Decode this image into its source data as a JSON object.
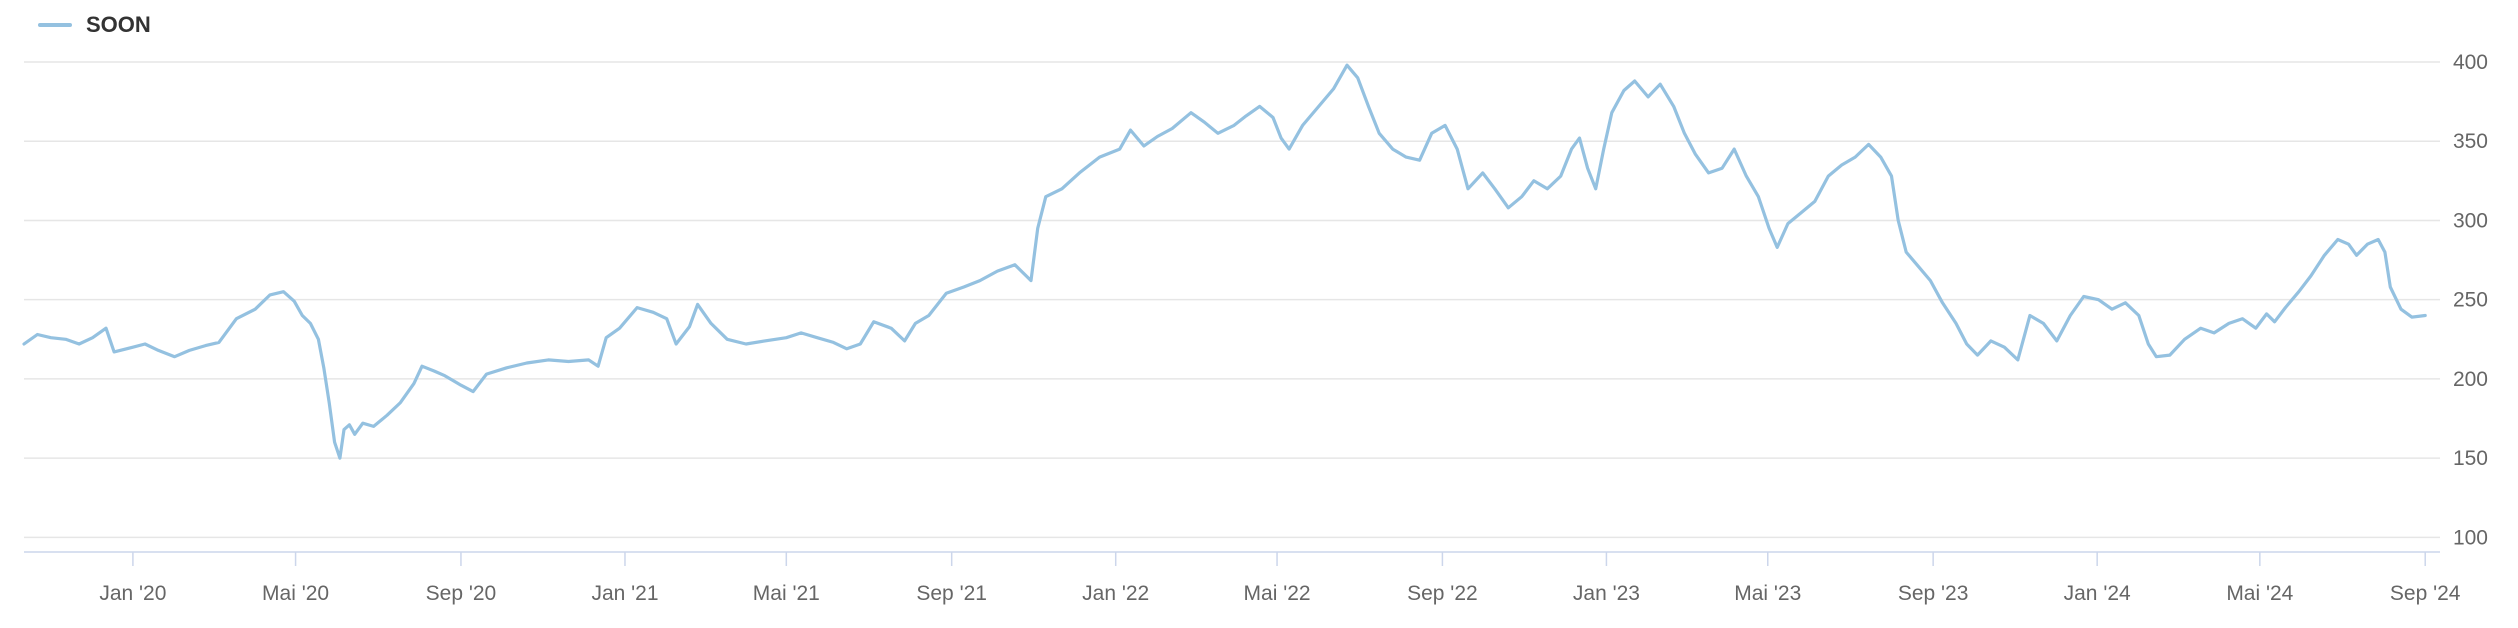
{
  "chart_data": {
    "type": "line",
    "legend": {
      "label": "SOON",
      "placement": "top-left"
    },
    "colors": {
      "series": "#94c1e0",
      "grid": "#e6e6e6",
      "axis": "#ccd6eb",
      "tick_text": "#666666",
      "legend_text": "#333333"
    },
    "x_tick_labels": [
      "Jan '20",
      "Mai '20",
      "Sep '20",
      "Jan '21",
      "Mai '21",
      "Sep '21",
      "Jan '22",
      "Mai '22",
      "Sep '22",
      "Jan '23",
      "Mai '23",
      "Sep '23",
      "Jan '24",
      "Mai '24",
      "Sep '24"
    ],
    "x_tick_dates": [
      "2020-01-01",
      "2020-05-01",
      "2020-09-01",
      "2021-01-01",
      "2021-05-01",
      "2021-09-01",
      "2022-01-01",
      "2022-05-01",
      "2022-09-01",
      "2023-01-01",
      "2023-05-01",
      "2023-09-01",
      "2024-01-01",
      "2024-05-01",
      "2024-09-01"
    ],
    "xlim": [
      "2019-10-12",
      "2024-09-12"
    ],
    "y_ticks": [
      100,
      150,
      200,
      250,
      300,
      350,
      400
    ],
    "y_tick_labels": [
      "100",
      "150",
      "200",
      "250",
      "300",
      "350",
      "400"
    ],
    "ylim": [
      92,
      400
    ],
    "grid": true,
    "series": [
      {
        "name": "SOON",
        "points": [
          [
            "2019-10-12",
            222
          ],
          [
            "2019-10-22",
            228
          ],
          [
            "2019-11-01",
            226
          ],
          [
            "2019-11-12",
            225
          ],
          [
            "2019-11-22",
            222
          ],
          [
            "2019-12-02",
            226
          ],
          [
            "2019-12-12",
            232
          ],
          [
            "2019-12-18",
            217
          ],
          [
            "2020-01-01",
            220
          ],
          [
            "2020-01-10",
            222
          ],
          [
            "2020-01-20",
            218
          ],
          [
            "2020-02-01",
            214
          ],
          [
            "2020-02-12",
            218
          ],
          [
            "2020-02-24",
            221
          ],
          [
            "2020-03-05",
            223
          ],
          [
            "2020-03-18",
            238
          ],
          [
            "2020-04-01",
            244
          ],
          [
            "2020-04-12",
            253
          ],
          [
            "2020-04-22",
            255
          ],
          [
            "2020-04-30",
            249
          ],
          [
            "2020-05-06",
            240
          ],
          [
            "2020-05-12",
            235
          ],
          [
            "2020-05-18",
            225
          ],
          [
            "2020-05-22",
            207
          ],
          [
            "2020-05-26",
            185
          ],
          [
            "2020-05-30",
            160
          ],
          [
            "2020-06-03",
            150
          ],
          [
            "2020-06-06",
            168
          ],
          [
            "2020-06-10",
            171
          ],
          [
            "2020-06-14",
            165
          ],
          [
            "2020-06-20",
            172
          ],
          [
            "2020-06-28",
            170
          ],
          [
            "2020-07-08",
            177
          ],
          [
            "2020-07-18",
            185
          ],
          [
            "2020-07-28",
            197
          ],
          [
            "2020-08-03",
            208
          ],
          [
            "2020-08-12",
            205
          ],
          [
            "2020-08-20",
            202
          ],
          [
            "2020-09-01",
            196
          ],
          [
            "2020-09-10",
            192
          ],
          [
            "2020-09-20",
            203
          ],
          [
            "2020-10-05",
            207
          ],
          [
            "2020-10-20",
            210
          ],
          [
            "2020-11-05",
            212
          ],
          [
            "2020-11-20",
            211
          ],
          [
            "2020-12-05",
            212
          ],
          [
            "2020-12-12",
            208
          ],
          [
            "2020-12-18",
            226
          ],
          [
            "2020-12-28",
            232
          ],
          [
            "2021-01-10",
            245
          ],
          [
            "2021-01-22",
            242
          ],
          [
            "2021-02-01",
            238
          ],
          [
            "2021-02-08",
            222
          ],
          [
            "2021-02-18",
            233
          ],
          [
            "2021-02-24",
            247
          ],
          [
            "2021-03-06",
            235
          ],
          [
            "2021-03-18",
            225
          ],
          [
            "2021-04-01",
            222
          ],
          [
            "2021-04-15",
            224
          ],
          [
            "2021-05-01",
            226
          ],
          [
            "2021-05-12",
            229
          ],
          [
            "2021-05-24",
            226
          ],
          [
            "2021-06-05",
            223
          ],
          [
            "2021-06-15",
            219
          ],
          [
            "2021-06-25",
            222
          ],
          [
            "2021-07-05",
            236
          ],
          [
            "2021-07-18",
            232
          ],
          [
            "2021-07-28",
            224
          ],
          [
            "2021-08-05",
            235
          ],
          [
            "2021-08-15",
            240
          ],
          [
            "2021-08-28",
            254
          ],
          [
            "2021-09-10",
            258
          ],
          [
            "2021-09-22",
            262
          ],
          [
            "2021-10-05",
            268
          ],
          [
            "2021-10-18",
            272
          ],
          [
            "2021-10-30",
            262
          ],
          [
            "2021-11-04",
            295
          ],
          [
            "2021-11-10",
            315
          ],
          [
            "2021-11-22",
            320
          ],
          [
            "2021-12-05",
            330
          ],
          [
            "2021-12-20",
            340
          ],
          [
            "2022-01-04",
            345
          ],
          [
            "2022-01-12",
            357
          ],
          [
            "2022-01-22",
            347
          ],
          [
            "2022-02-01",
            353
          ],
          [
            "2022-02-12",
            358
          ],
          [
            "2022-02-26",
            368
          ],
          [
            "2022-03-08",
            362
          ],
          [
            "2022-03-18",
            355
          ],
          [
            "2022-03-30",
            360
          ],
          [
            "2022-04-08",
            366
          ],
          [
            "2022-04-18",
            372
          ],
          [
            "2022-04-28",
            365
          ],
          [
            "2022-05-04",
            352
          ],
          [
            "2022-05-10",
            345
          ],
          [
            "2022-05-20",
            360
          ],
          [
            "2022-06-01",
            372
          ],
          [
            "2022-06-12",
            383
          ],
          [
            "2022-06-22",
            398
          ],
          [
            "2022-06-30",
            390
          ],
          [
            "2022-07-08",
            372
          ],
          [
            "2022-07-16",
            355
          ],
          [
            "2022-07-26",
            345
          ],
          [
            "2022-08-05",
            340
          ],
          [
            "2022-08-15",
            338
          ],
          [
            "2022-08-24",
            355
          ],
          [
            "2022-09-03",
            360
          ],
          [
            "2022-09-12",
            345
          ],
          [
            "2022-09-20",
            320
          ],
          [
            "2022-10-01",
            330
          ],
          [
            "2022-10-10",
            320
          ],
          [
            "2022-10-20",
            308
          ],
          [
            "2022-10-30",
            315
          ],
          [
            "2022-11-08",
            325
          ],
          [
            "2022-11-18",
            320
          ],
          [
            "2022-11-28",
            328
          ],
          [
            "2022-12-06",
            345
          ],
          [
            "2022-12-12",
            352
          ],
          [
            "2022-12-18",
            333
          ],
          [
            "2022-12-24",
            320
          ],
          [
            "2022-12-30",
            345
          ],
          [
            "2023-01-05",
            368
          ],
          [
            "2023-01-14",
            382
          ],
          [
            "2023-01-22",
            388
          ],
          [
            "2023-02-01",
            378
          ],
          [
            "2023-02-10",
            386
          ],
          [
            "2023-02-20",
            372
          ],
          [
            "2023-02-28",
            355
          ],
          [
            "2023-03-08",
            342
          ],
          [
            "2023-03-18",
            330
          ],
          [
            "2023-03-28",
            333
          ],
          [
            "2023-04-06",
            345
          ],
          [
            "2023-04-15",
            328
          ],
          [
            "2023-04-24",
            315
          ],
          [
            "2023-05-02",
            295
          ],
          [
            "2023-05-08",
            283
          ],
          [
            "2023-05-16",
            298
          ],
          [
            "2023-05-26",
            305
          ],
          [
            "2023-06-05",
            312
          ],
          [
            "2023-06-15",
            328
          ],
          [
            "2023-06-25",
            335
          ],
          [
            "2023-07-05",
            340
          ],
          [
            "2023-07-15",
            348
          ],
          [
            "2023-07-24",
            340
          ],
          [
            "2023-08-01",
            328
          ],
          [
            "2023-08-06",
            300
          ],
          [
            "2023-08-12",
            280
          ],
          [
            "2023-08-20",
            272
          ],
          [
            "2023-08-30",
            262
          ],
          [
            "2023-09-08",
            248
          ],
          [
            "2023-09-18",
            235
          ],
          [
            "2023-09-26",
            222
          ],
          [
            "2023-10-04",
            215
          ],
          [
            "2023-10-14",
            224
          ],
          [
            "2023-10-24",
            220
          ],
          [
            "2023-11-03",
            212
          ],
          [
            "2023-11-12",
            240
          ],
          [
            "2023-11-22",
            235
          ],
          [
            "2023-12-02",
            224
          ],
          [
            "2023-12-12",
            240
          ],
          [
            "2023-12-22",
            252
          ],
          [
            "2024-01-02",
            250
          ],
          [
            "2024-01-12",
            244
          ],
          [
            "2024-01-22",
            248
          ],
          [
            "2024-02-01",
            240
          ],
          [
            "2024-02-08",
            222
          ],
          [
            "2024-02-14",
            214
          ],
          [
            "2024-02-24",
            215
          ],
          [
            "2024-03-06",
            225
          ],
          [
            "2024-03-18",
            232
          ],
          [
            "2024-03-28",
            229
          ],
          [
            "2024-04-08",
            235
          ],
          [
            "2024-04-18",
            238
          ],
          [
            "2024-04-28",
            232
          ],
          [
            "2024-05-06",
            241
          ],
          [
            "2024-05-12",
            236
          ],
          [
            "2024-05-20",
            245
          ],
          [
            "2024-05-30",
            255
          ],
          [
            "2024-06-08",
            265
          ],
          [
            "2024-06-18",
            278
          ],
          [
            "2024-06-28",
            288
          ],
          [
            "2024-07-06",
            285
          ],
          [
            "2024-07-12",
            278
          ],
          [
            "2024-07-20",
            285
          ],
          [
            "2024-07-28",
            288
          ],
          [
            "2024-08-02",
            280
          ],
          [
            "2024-08-06",
            258
          ],
          [
            "2024-08-14",
            244
          ],
          [
            "2024-08-22",
            239
          ],
          [
            "2024-09-01",
            240
          ]
        ]
      }
    ]
  }
}
